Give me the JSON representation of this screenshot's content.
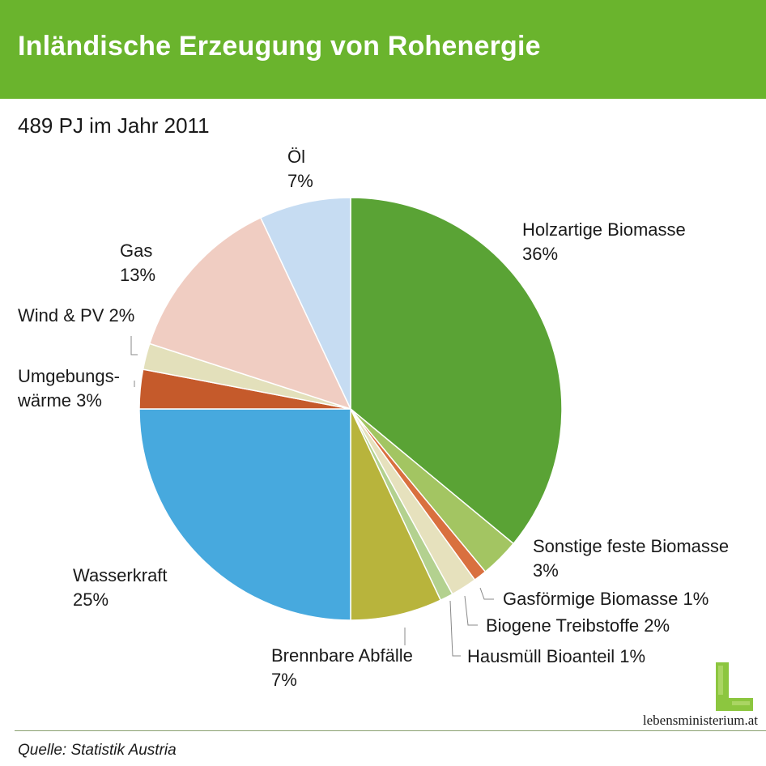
{
  "header": {
    "title": "Inländische Erzeugung von Rohenergie"
  },
  "subtitle": "489 PJ im Jahr 2011",
  "source": "Quelle: Statistik Austria",
  "logo": {
    "text": "lebensministerium.at",
    "icon": "green-L-logo-icon",
    "color": "#8cc63f"
  },
  "chart_data": {
    "type": "pie",
    "title": "Inländische Erzeugung von Rohenergie",
    "subtitle": "489 PJ im Jahr 2011",
    "unit": "%",
    "start": "12 o'clock",
    "direction": "clockwise",
    "slices": [
      {
        "label_lines": [
          "Holzartige Biomasse",
          "36%"
        ],
        "value": 36,
        "color": "#5aa335"
      },
      {
        "label_lines": [
          "Sonstige feste Biomasse",
          "3%"
        ],
        "value": 3,
        "color": "#a3c562"
      },
      {
        "label_lines": [
          "Gasförmige Biomasse 1%"
        ],
        "value": 1,
        "color": "#d9703f"
      },
      {
        "label_lines": [
          "Biogene Treibstoffe 2%"
        ],
        "value": 2,
        "color": "#e6e1bd"
      },
      {
        "label_lines": [
          "Hausmüll Bioanteil 1%"
        ],
        "value": 1,
        "color": "#b3d18f"
      },
      {
        "label_lines": [
          "Brennbare Abfälle",
          "7%"
        ],
        "value": 7,
        "color": "#b8b43c"
      },
      {
        "label_lines": [
          "Wasserkraft",
          "25%"
        ],
        "value": 25,
        "color": "#47a9de"
      },
      {
        "label_lines": [
          "Umgebungs-",
          "wärme 3%"
        ],
        "value": 3,
        "color": "#c55a2b"
      },
      {
        "label_lines": [
          "Wind & PV 2%"
        ],
        "value": 2,
        "color": "#e3e0bb"
      },
      {
        "label_lines": [
          "Gas",
          "13%"
        ],
        "value": 13,
        "color": "#f0cdc2"
      },
      {
        "label_lines": [
          "Öl",
          "7%"
        ],
        "value": 7,
        "color": "#c6dcf2"
      }
    ]
  }
}
